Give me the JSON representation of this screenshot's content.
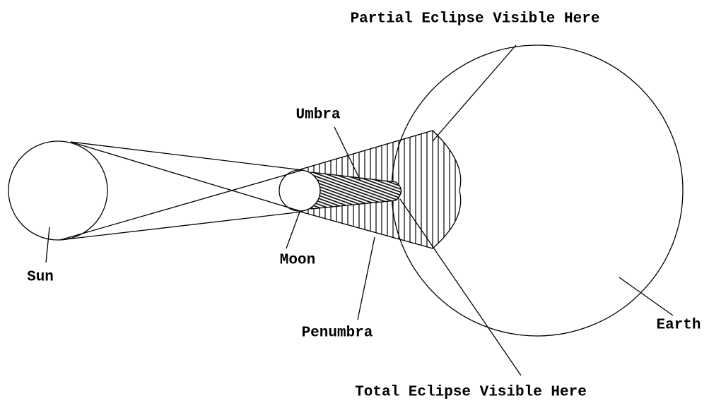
{
  "labels": {
    "partial": "Partial Eclipse Visible Here",
    "umbra": "Umbra",
    "sun": "Sun",
    "moon": "Moon",
    "penumbra": "Penumbra",
    "earth": "Earth",
    "total": "Total Eclipse Visible Here"
  }
}
